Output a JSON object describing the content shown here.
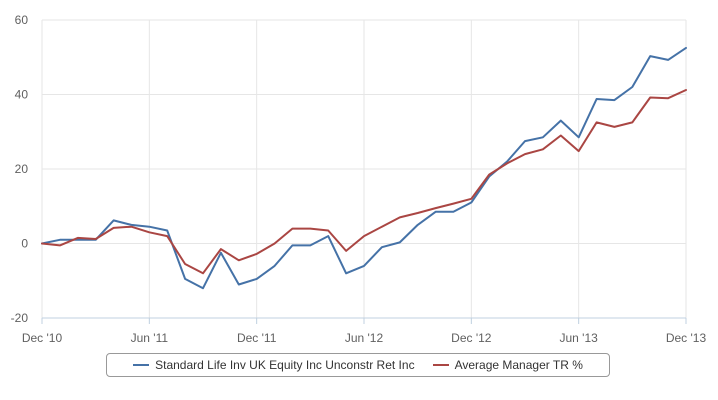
{
  "chart_data": {
    "type": "line",
    "title": "",
    "xlabel": "",
    "ylabel": "",
    "ylim": [
      -20,
      60
    ],
    "yticks": [
      -20,
      0,
      20,
      40,
      60
    ],
    "xticks": [
      "Dec '10",
      "Jun '11",
      "Dec '11",
      "Jun '12",
      "Dec '12",
      "Jun '13",
      "Dec '13"
    ],
    "grid": true,
    "legend_position": "bottom",
    "x": [
      "Dec '10",
      "Jan '11",
      "Feb '11",
      "Mar '11",
      "Apr '11",
      "May '11",
      "Jun '11",
      "Jul '11",
      "Aug '11",
      "Sep '11",
      "Oct '11",
      "Nov '11",
      "Dec '11",
      "Jan '12",
      "Feb '12",
      "Mar '12",
      "Apr '12",
      "May '12",
      "Jun '12",
      "Jul '12",
      "Aug '12",
      "Sep '12",
      "Oct '12",
      "Nov '12",
      "Dec '12",
      "Jan '13",
      "Feb '13",
      "Mar '13",
      "Apr '13",
      "May '13",
      "Jun '13",
      "Jul '13",
      "Aug '13",
      "Sep '13",
      "Oct '13",
      "Nov '13",
      "Dec '13"
    ],
    "series": [
      {
        "name": "Standard Life Inv UK Equity Inc Unconstr Ret Inc",
        "color": "#4572a7",
        "values": [
          0,
          1,
          1,
          1,
          6.2,
          5,
          4.5,
          3.5,
          -9.5,
          -12,
          -2.5,
          -11,
          -9.5,
          -6,
          -0.5,
          -0.5,
          2,
          -8,
          -6,
          -1,
          0.3,
          5,
          8.5,
          8.5,
          11,
          18,
          22,
          27.5,
          28.5,
          33,
          28.5,
          38.8,
          38.5,
          42,
          50.3,
          49.3,
          52.5
        ]
      },
      {
        "name": "Average Manager TR %",
        "color": "#aa4643",
        "values": [
          0,
          -0.5,
          1.5,
          1.2,
          4.2,
          4.5,
          3,
          2,
          -5.5,
          -8,
          -1.5,
          -4.5,
          -2.8,
          0,
          4,
          4,
          3.5,
          -2,
          2,
          4.5,
          7,
          8.2,
          9.5,
          10.7,
          12,
          18.5,
          21.5,
          24,
          25.3,
          29,
          24.8,
          32.5,
          31.3,
          32.5,
          39.2,
          39,
          41.2
        ]
      }
    ]
  }
}
